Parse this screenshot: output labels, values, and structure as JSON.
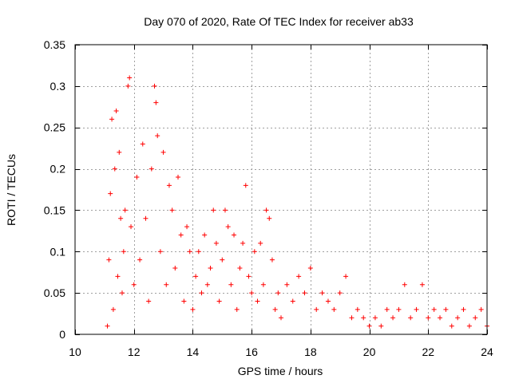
{
  "chart_data": {
    "type": "scatter",
    "title": "Day 070 of 2020, Rate Of TEC Index for receiver ab33",
    "xlabel": "GPS time / hours",
    "ylabel": "ROTI / TECUs",
    "xlim": [
      10,
      24
    ],
    "ylim": [
      0,
      0.35
    ],
    "xticks": [
      10,
      12,
      14,
      16,
      18,
      20,
      22,
      24
    ],
    "xtick_labels": [
      "10",
      "12",
      "14",
      "16",
      "18",
      "20",
      "22",
      "24"
    ],
    "yticks": [
      0,
      0.05,
      0.1,
      0.15,
      0.2,
      0.25,
      0.3,
      0.35
    ],
    "ytick_labels": [
      "0",
      "0.05",
      "0.1",
      "0.15",
      "0.2",
      "0.25",
      "0.3",
      "0.35"
    ],
    "grid": true,
    "legend": "none",
    "marker": "plus",
    "color": "#ff0000",
    "series": [
      {
        "points": [
          [
            11.1,
            0.01
          ],
          [
            11.15,
            0.09
          ],
          [
            11.2,
            0.17
          ],
          [
            11.25,
            0.26
          ],
          [
            11.3,
            0.03
          ],
          [
            11.35,
            0.2
          ],
          [
            11.4,
            0.27
          ],
          [
            11.45,
            0.07
          ],
          [
            11.5,
            0.22
          ],
          [
            11.55,
            0.14
          ],
          [
            11.6,
            0.05
          ],
          [
            11.65,
            0.1
          ],
          [
            11.7,
            0.15
          ],
          [
            11.8,
            0.3
          ],
          [
            11.85,
            0.31
          ],
          [
            11.9,
            0.13
          ],
          [
            12.0,
            0.06
          ],
          [
            12.1,
            0.19
          ],
          [
            12.2,
            0.09
          ],
          [
            12.3,
            0.23
          ],
          [
            12.4,
            0.14
          ],
          [
            12.5,
            0.04
          ],
          [
            12.6,
            0.2
          ],
          [
            12.7,
            0.3
          ],
          [
            12.75,
            0.28
          ],
          [
            12.8,
            0.24
          ],
          [
            12.9,
            0.1
          ],
          [
            13.0,
            0.22
          ],
          [
            13.1,
            0.06
          ],
          [
            13.2,
            0.18
          ],
          [
            13.3,
            0.15
          ],
          [
            13.4,
            0.08
          ],
          [
            13.5,
            0.19
          ],
          [
            13.6,
            0.12
          ],
          [
            13.7,
            0.04
          ],
          [
            13.8,
            0.13
          ],
          [
            13.9,
            0.1
          ],
          [
            14.0,
            0.03
          ],
          [
            14.1,
            0.07
          ],
          [
            14.2,
            0.1
          ],
          [
            14.3,
            0.05
          ],
          [
            14.4,
            0.12
          ],
          [
            14.5,
            0.06
          ],
          [
            14.6,
            0.08
          ],
          [
            14.7,
            0.15
          ],
          [
            14.8,
            0.11
          ],
          [
            14.9,
            0.04
          ],
          [
            15.0,
            0.09
          ],
          [
            15.1,
            0.15
          ],
          [
            15.2,
            0.13
          ],
          [
            15.3,
            0.06
          ],
          [
            15.4,
            0.12
          ],
          [
            15.5,
            0.03
          ],
          [
            15.6,
            0.08
          ],
          [
            15.7,
            0.11
          ],
          [
            15.8,
            0.18
          ],
          [
            15.9,
            0.07
          ],
          [
            16.0,
            0.05
          ],
          [
            16.1,
            0.1
          ],
          [
            16.2,
            0.04
          ],
          [
            16.3,
            0.11
          ],
          [
            16.4,
            0.06
          ],
          [
            16.5,
            0.15
          ],
          [
            16.6,
            0.14
          ],
          [
            16.7,
            0.09
          ],
          [
            16.8,
            0.03
          ],
          [
            16.9,
            0.05
          ],
          [
            17.0,
            0.02
          ],
          [
            17.2,
            0.06
          ],
          [
            17.4,
            0.04
          ],
          [
            17.6,
            0.07
          ],
          [
            17.8,
            0.05
          ],
          [
            18.0,
            0.08
          ],
          [
            18.2,
            0.03
          ],
          [
            18.4,
            0.05
          ],
          [
            18.6,
            0.04
          ],
          [
            18.8,
            0.03
          ],
          [
            19.0,
            0.05
          ],
          [
            19.2,
            0.07
          ],
          [
            19.4,
            0.02
          ],
          [
            19.6,
            0.03
          ],
          [
            19.8,
            0.02
          ],
          [
            20.0,
            0.01
          ],
          [
            20.2,
            0.02
          ],
          [
            20.4,
            0.01
          ],
          [
            20.6,
            0.03
          ],
          [
            20.8,
            0.02
          ],
          [
            21.0,
            0.03
          ],
          [
            21.2,
            0.06
          ],
          [
            21.4,
            0.02
          ],
          [
            21.6,
            0.03
          ],
          [
            21.8,
            0.06
          ],
          [
            22.0,
            0.02
          ],
          [
            22.2,
            0.03
          ],
          [
            22.4,
            0.02
          ],
          [
            22.6,
            0.03
          ],
          [
            22.8,
            0.01
          ],
          [
            23.0,
            0.02
          ],
          [
            23.2,
            0.03
          ],
          [
            23.4,
            0.01
          ],
          [
            23.6,
            0.02
          ],
          [
            23.8,
            0.03
          ],
          [
            24.0,
            0.01
          ]
        ]
      }
    ]
  }
}
